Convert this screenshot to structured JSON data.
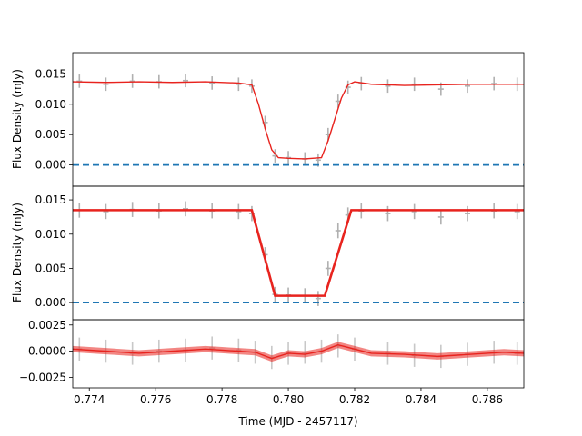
{
  "chart_data": [
    {
      "type": "line",
      "panel": "top",
      "ylabel": "Flux Density (mJy)",
      "xlim": [
        0.7735,
        0.7871
      ],
      "ylim": [
        -0.0035,
        0.0185
      ],
      "yticks": [
        0.0,
        0.005,
        0.01,
        0.015
      ],
      "ytick_labels": [
        "0.000",
        "0.005",
        "0.010",
        "0.015"
      ],
      "grid": false,
      "reference_line": {
        "y": 0.0,
        "style": "dashed",
        "color": "#1f77b4"
      },
      "series": [
        {
          "role": "data",
          "color": "#b0b0b0",
          "errorbar_height": 0.0022,
          "x": [
            0.7737,
            0.7745,
            0.7753,
            0.7761,
            0.7769,
            0.7777,
            0.7785,
            0.7789,
            0.7793,
            0.7796,
            0.78,
            0.7805,
            0.7809,
            0.7812,
            0.7815,
            0.7818,
            0.7822,
            0.783,
            0.7838,
            0.7846,
            0.7854,
            0.7862,
            0.7869
          ],
          "y": [
            0.0138,
            0.0133,
            0.0138,
            0.0137,
            0.0139,
            0.0135,
            0.0133,
            0.013,
            0.007,
            0.0015,
            0.0012,
            0.001,
            0.0008,
            0.005,
            0.0105,
            0.0128,
            0.0134,
            0.013,
            0.0133,
            0.0125,
            0.013,
            0.0134,
            0.0133
          ]
        },
        {
          "role": "model",
          "color": "#e8231e",
          "x": [
            0.7735,
            0.7745,
            0.7755,
            0.7765,
            0.7775,
            0.7785,
            0.7789,
            0.7791,
            0.7793,
            0.7795,
            0.7797,
            0.78,
            0.7805,
            0.781,
            0.7812,
            0.7814,
            0.7816,
            0.7818,
            0.782,
            0.7825,
            0.7835,
            0.7845,
            0.7855,
            0.7865,
            0.7871
          ],
          "y": [
            0.0137,
            0.0136,
            0.0137,
            0.0136,
            0.0137,
            0.0135,
            0.0132,
            0.01,
            0.006,
            0.0025,
            0.0012,
            0.0011,
            0.001,
            0.0012,
            0.004,
            0.0075,
            0.011,
            0.0132,
            0.0137,
            0.0133,
            0.0131,
            0.0132,
            0.0133,
            0.0133,
            0.0133
          ]
        }
      ]
    },
    {
      "type": "line",
      "panel": "middle",
      "ylabel": "Flux Density (mJy)",
      "xlim": [
        0.7735,
        0.7871
      ],
      "ylim": [
        -0.0025,
        0.017
      ],
      "yticks": [
        0.0,
        0.005,
        0.01,
        0.015
      ],
      "ytick_labels": [
        "0.000",
        "0.005",
        "0.010",
        "0.015"
      ],
      "grid": false,
      "reference_line": {
        "y": 0.0,
        "style": "dashed",
        "color": "#1f77b4"
      },
      "series": [
        {
          "role": "data",
          "color": "#b0b0b0",
          "errorbar_height": 0.0022,
          "x": [
            0.7737,
            0.7745,
            0.7753,
            0.7761,
            0.7769,
            0.7777,
            0.7785,
            0.7789,
            0.7793,
            0.7796,
            0.78,
            0.7805,
            0.7809,
            0.7812,
            0.7815,
            0.7818,
            0.7822,
            0.783,
            0.7838,
            0.7846,
            0.7854,
            0.7862,
            0.7869
          ],
          "y": [
            0.0135,
            0.0133,
            0.0136,
            0.0134,
            0.0137,
            0.0134,
            0.0133,
            0.013,
            0.007,
            0.0012,
            0.0011,
            0.001,
            0.0006,
            0.005,
            0.0105,
            0.0128,
            0.0134,
            0.013,
            0.0133,
            0.0125,
            0.013,
            0.0134,
            0.0133
          ]
        },
        {
          "role": "model",
          "color": "#e8231e",
          "x": [
            0.7735,
            0.7789,
            0.7796,
            0.78,
            0.7811,
            0.7819,
            0.7871
          ],
          "y": [
            0.0135,
            0.0135,
            0.001,
            0.001,
            0.001,
            0.0135,
            0.0135
          ]
        }
      ]
    },
    {
      "type": "area",
      "panel": "bottom",
      "xlabel": "Time (MJD - 2457117)",
      "xlim": [
        0.7735,
        0.7871
      ],
      "ylim": [
        -0.0035,
        0.003
      ],
      "yticks": [
        -0.0025,
        0.0,
        0.0025
      ],
      "ytick_labels": [
        "−0.0025",
        "0.0000",
        "0.0025"
      ],
      "xticks": [
        0.774,
        0.776,
        0.778,
        0.78,
        0.782,
        0.784,
        0.786
      ],
      "xtick_labels": [
        "0.774",
        "0.776",
        "0.778",
        "0.780",
        "0.782",
        "0.784",
        "0.786"
      ],
      "grid": false,
      "series": [
        {
          "role": "data",
          "color": "#c8c8c8",
          "errorbar_height": 0.0022,
          "x": [
            0.7737,
            0.7745,
            0.7753,
            0.7761,
            0.7769,
            0.7777,
            0.7785,
            0.779,
            0.7795,
            0.78,
            0.7805,
            0.781,
            0.7815,
            0.782,
            0.783,
            0.7838,
            0.7846,
            0.7854,
            0.7862,
            0.7869
          ],
          "y": [
            0.0002,
            0.0,
            -0.0002,
            0.0,
            0.0001,
            0.0003,
            0.0001,
            -0.0001,
            -0.0006,
            -0.0002,
            -0.0001,
            0.0,
            0.0005,
            0.0002,
            -0.0002,
            -0.0004,
            -0.0005,
            -0.0003,
            -0.0001,
            -0.0002
          ]
        },
        {
          "role": "model",
          "color": "#e8231e",
          "band_halfwidth": 0.0003,
          "x": [
            0.7735,
            0.7745,
            0.7755,
            0.7765,
            0.7775,
            0.778,
            0.7785,
            0.779,
            0.7795,
            0.78,
            0.7805,
            0.781,
            0.7815,
            0.782,
            0.7825,
            0.7835,
            0.7845,
            0.7855,
            0.7865,
            0.7871
          ],
          "y": [
            0.0002,
            0.0,
            -0.0002,
            0.0,
            0.0002,
            0.0001,
            0.0,
            -0.0001,
            -0.0007,
            -0.0002,
            -0.0003,
            0.0,
            0.0006,
            0.0002,
            -0.0002,
            -0.0003,
            -0.0005,
            -0.0003,
            -0.0001,
            -0.0002
          ]
        }
      ]
    }
  ]
}
